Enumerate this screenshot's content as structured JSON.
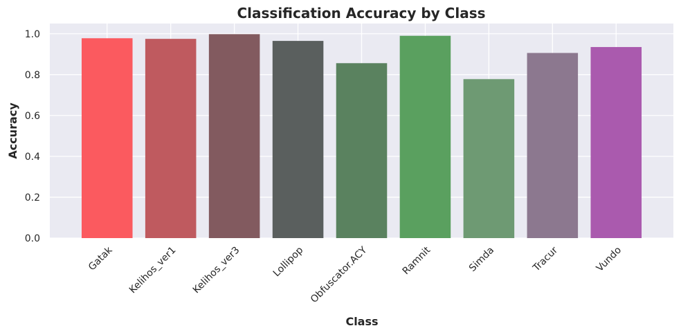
{
  "chart_data": {
    "type": "bar",
    "title": "Classification Accuracy by Class",
    "xlabel": "Class",
    "ylabel": "Accuracy",
    "categories": [
      "Gatak",
      "Kelihos_ver1",
      "Kelihos_ver3",
      "Lollipop",
      "Obfuscator.ACY",
      "Ramnit",
      "Simda",
      "Tracur",
      "Vundo"
    ],
    "values": [
      0.978,
      0.975,
      0.998,
      0.965,
      0.856,
      0.99,
      0.778,
      0.906,
      0.935
    ],
    "colors": [
      "#fb5a5f",
      "#bf5a5f",
      "#825a5f",
      "#5a5f5e",
      "#5a825f",
      "#5aa05f",
      "#6e9a73",
      "#8c788f",
      "#aa5aae"
    ],
    "ylim": [
      0,
      1.05
    ],
    "yticks": [
      0.0,
      0.2,
      0.4,
      0.6,
      0.8,
      1.0
    ],
    "ytick_labels": [
      "0.0",
      "0.2",
      "0.4",
      "0.6",
      "0.8",
      "1.0"
    ],
    "grid": true,
    "legend": "none"
  }
}
